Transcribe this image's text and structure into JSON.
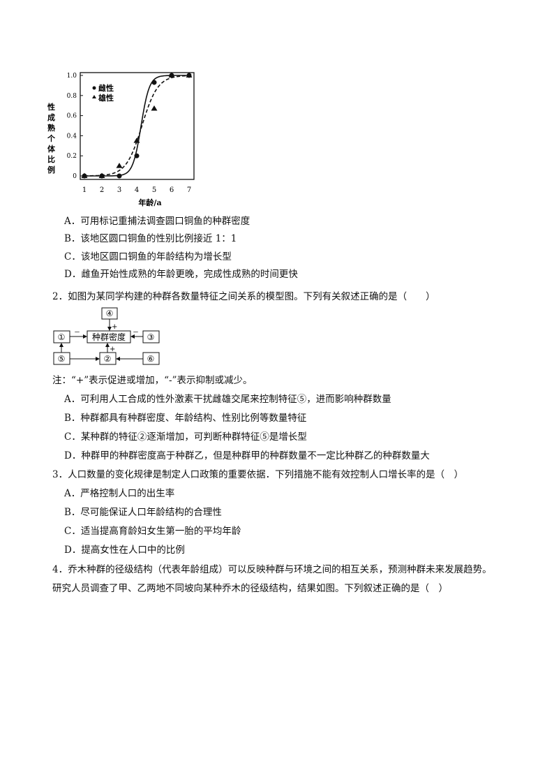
{
  "chart_data": {
    "type": "line",
    "xlabel": "年龄/a",
    "ylabel": "性成熟个体比例",
    "x": [
      1,
      2,
      3,
      4,
      5,
      6,
      7
    ],
    "xticks": [
      "1",
      "2",
      "3",
      "4",
      "5",
      "6",
      "7"
    ],
    "yticks": [
      "0",
      "0.2",
      "0.4",
      "0.6",
      "0.8",
      "1.0"
    ],
    "ylim": [
      0,
      1
    ],
    "xlim": [
      1,
      7
    ],
    "legend_position": "top-left",
    "series": [
      {
        "name": "雌性",
        "marker": "circle",
        "line": "solid",
        "values": [
          0,
          0,
          0,
          0.2,
          0.93,
          1,
          1
        ]
      },
      {
        "name": "雄性",
        "marker": "triangle",
        "line": "dashed",
        "values": [
          0,
          0,
          0.1,
          0.35,
          0.67,
          1,
          1
        ]
      }
    ]
  },
  "q1": {
    "options": [
      "A．可用标记重捕法调查圆口铜鱼的种群密度",
      "B．该地区圆口铜鱼的性别比例接近 1：1",
      "C．该地区圆口铜鱼的年龄结构为增长型",
      "D．雌鱼开始性成熟的年龄更晚，完成性成熟的时间更快"
    ]
  },
  "q2": {
    "stem": "2．如图为某同学构建的种群各数量特征之间关系的模型图。下列有关叙述正确的是（　　）",
    "diagram": {
      "center": "种群密度",
      "n1": "①",
      "n2": "②",
      "n3": "③",
      "n4": "④",
      "n5": "⑤",
      "n6": "⑥",
      "plus": "+",
      "minus": "－"
    },
    "note": "注：“+”表示促进或增加，“-”表示抑制或减少。",
    "options": [
      "A．可利用人工合成的性外激素干扰雌雄交尾来控制特征⑤，进而影响种群数量",
      "B．种群都具有种群密度、年龄结构、性别比例等数量特征",
      "C．某种群的特征②逐渐增加，可判断种群特征⑤是增长型",
      "D．种群甲的种群密度高于种群乙，但是种群甲的种群数量不一定比种群乙的种群数量大"
    ]
  },
  "q3": {
    "stem": "3．人口数量的变化规律是制定人口政策的重要依据．下列措施不能有效控制人口增长率的是（　）",
    "options": [
      "A．严格控制人口的出生率",
      "B．尽可能保证人口年龄结构的合理性",
      "C．适当提高育龄妇女生第一胎的平均年龄",
      "D．提高女性在人口中的比例"
    ]
  },
  "q4": {
    "stem1": "4．乔木种群的径级结构（代表年龄组成）可以反映种群与环境之间的相互关系，预测种群未来发展趋势。",
    "stem2": "研究人员调查了甲、乙两地不同坡向某种乔木的径级结构，结果如图。下列叙述正确的是（　）"
  }
}
